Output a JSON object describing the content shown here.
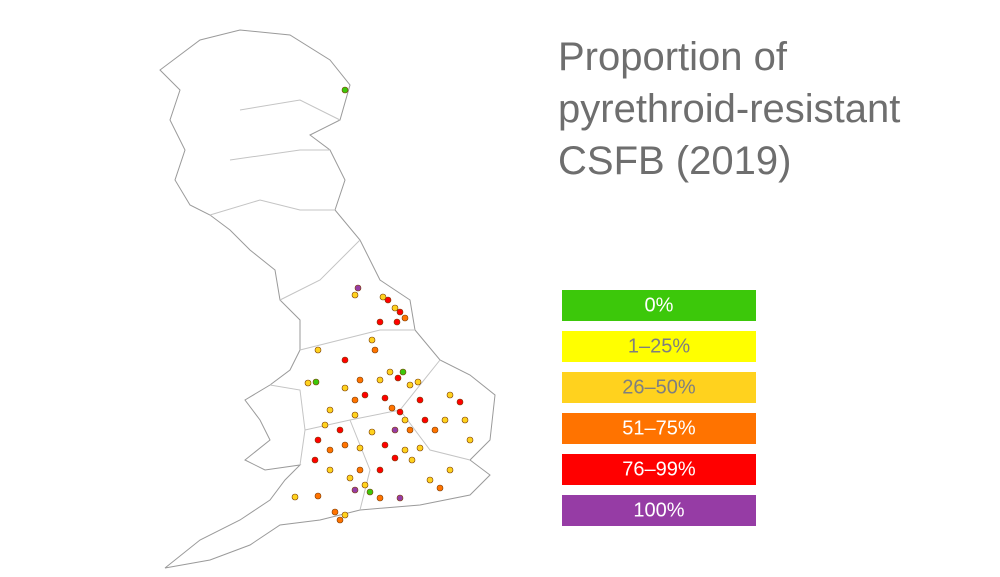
{
  "title_lines": [
    "Proportion of",
    "pyrethroid-resistant",
    "CSFB (2019)"
  ],
  "legend": [
    {
      "label": "0%",
      "color": "#3cc80a",
      "text_color": "#ffffff"
    },
    {
      "label": "1–25%",
      "color": "#ffff00",
      "text_color": "#7f7f7f"
    },
    {
      "label": "26–50%",
      "color": "#ffd21e",
      "text_color": "#7f7f7f"
    },
    {
      "label": "51–75%",
      "color": "#ff7300",
      "text_color": "#ffffff"
    },
    {
      "label": "76–99%",
      "color": "#ff0000",
      "text_color": "#ffffff"
    },
    {
      "label": "100%",
      "color": "#963ca5",
      "text_color": "#ffffff"
    }
  ]
}
